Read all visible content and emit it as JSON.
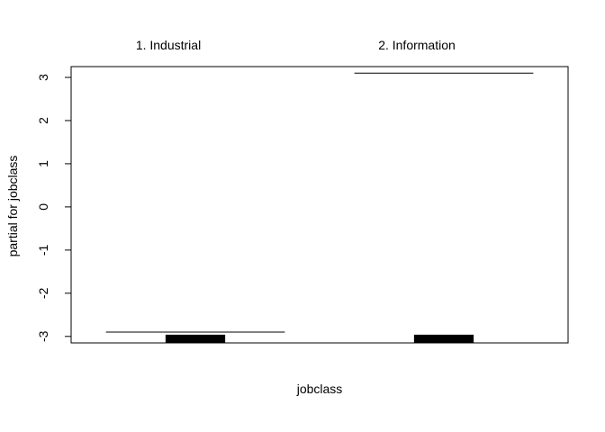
{
  "chart_data": {
    "type": "bar",
    "title": "",
    "xlabel": "jobclass",
    "ylabel": "partial for jobclass",
    "categories": [
      "1. Industrial",
      "2. Information"
    ],
    "partial_effects": [
      -2.9,
      3.1
    ],
    "rug_markers": [
      -3.0,
      -3.0
    ],
    "ylim": [
      -3.15,
      3.25
    ],
    "yticks": [
      -3,
      -2,
      -1,
      0,
      1,
      2,
      3
    ],
    "ytick_labels": [
      "-3",
      "-2",
      "-1",
      "0",
      "1",
      "2",
      "3"
    ],
    "grid": false,
    "legend": "none",
    "colors": {
      "line": "#000000",
      "rug": "#000000",
      "background": "#ffffff"
    }
  }
}
